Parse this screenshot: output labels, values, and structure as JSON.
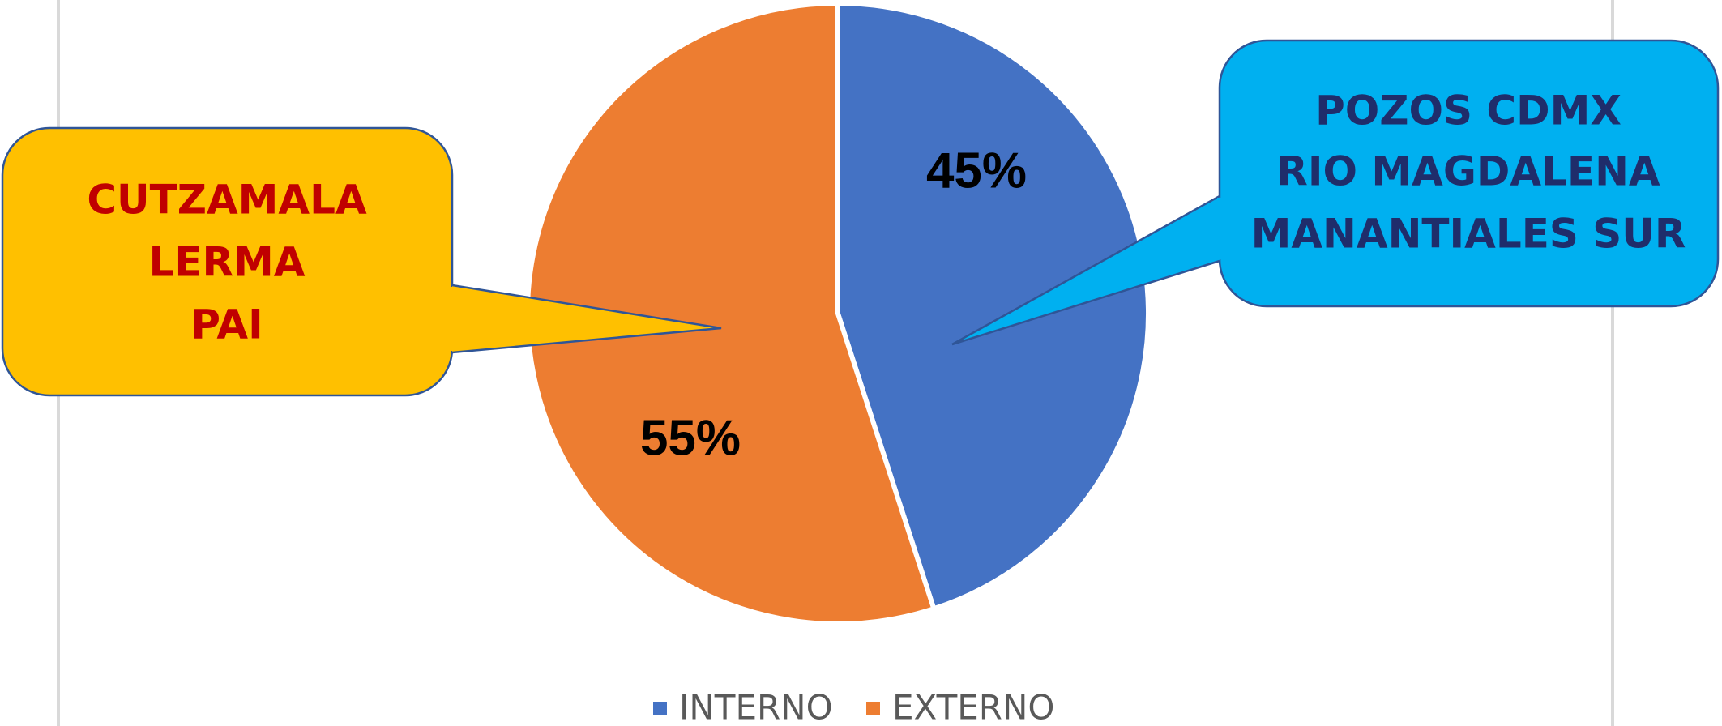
{
  "chart_data": {
    "type": "pie",
    "categories": [
      "INTERNO",
      "EXTERNO"
    ],
    "values": [
      45,
      55
    ],
    "data_labels": [
      "45%",
      "55%"
    ],
    "colors": [
      "#4472C4",
      "#ED7D31"
    ],
    "legend_position": "bottom",
    "start_angle": "12 o'clock, clockwise",
    "callouts": [
      {
        "series": "INTERNO",
        "lines": [
          "POZOS CDMX",
          "RIO MAGDALENA",
          "MANANTIALES SUR"
        ],
        "fill": "#00B0F0",
        "text_color": "#1F2D6B"
      },
      {
        "series": "EXTERNO",
        "lines": [
          "CUTZAMALA",
          "LERMA",
          "PAI"
        ],
        "fill": "#FFC000",
        "text_color": "#C00000"
      }
    ]
  }
}
